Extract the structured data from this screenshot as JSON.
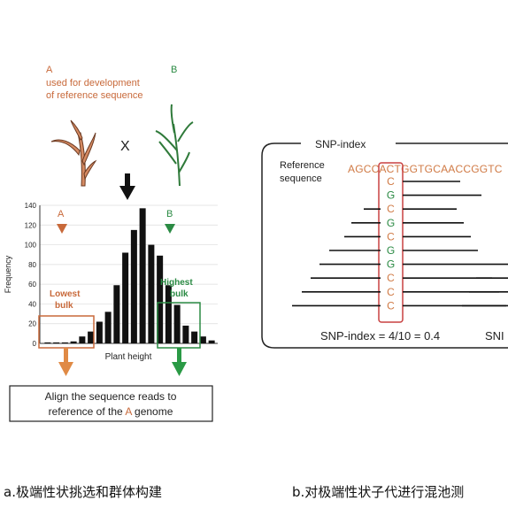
{
  "panel_a": {
    "parent_a": {
      "letter": "A",
      "desc_line1": "used for development",
      "desc_line2": "of reference sequence"
    },
    "parent_b": {
      "letter": "B"
    },
    "cross_symbol": "X",
    "chart_data": {
      "type": "bar",
      "title": "",
      "xlabel": "Plant height",
      "ylabel": "Frequency",
      "ylim": [
        0,
        140
      ],
      "yticks": [
        0,
        20,
        40,
        60,
        80,
        100,
        120,
        140
      ],
      "values": [
        1,
        1,
        1,
        2,
        7,
        12,
        22,
        32,
        59,
        92,
        115,
        137,
        100,
        89,
        59,
        39,
        18,
        12,
        7,
        3
      ],
      "grid": true
    },
    "marker_a": "A",
    "marker_b": "B",
    "lowest_bulk": {
      "line1": "Lowest",
      "line2": "bulk"
    },
    "highest_bulk": {
      "line1": "Highest",
      "line2": "bulk"
    },
    "align_box": {
      "line1": "Align the sequence reads to",
      "line2_pre": "reference of the ",
      "line2_a": "A",
      "line2_post": " genome"
    },
    "colors": {
      "parent_a": "#c8693a",
      "parent_b": "#2a8a43"
    }
  },
  "panel_b": {
    "title": "SNP-index",
    "reference_label_line1": "Reference",
    "reference_label_line2": "sequence",
    "reference_sequence": "AGCCACTGGTGCAACCGGTC",
    "snp_column": [
      "C",
      "G",
      "C",
      "G",
      "C",
      "G",
      "G",
      "C",
      "C",
      "C"
    ],
    "formula": "SNP-index = 4/10 = 0.4",
    "formula_cut": "SNI"
  },
  "captions": {
    "a": "a.极端性状挑选和群体构建",
    "b": "b.对极端性状子代进行混池测"
  }
}
